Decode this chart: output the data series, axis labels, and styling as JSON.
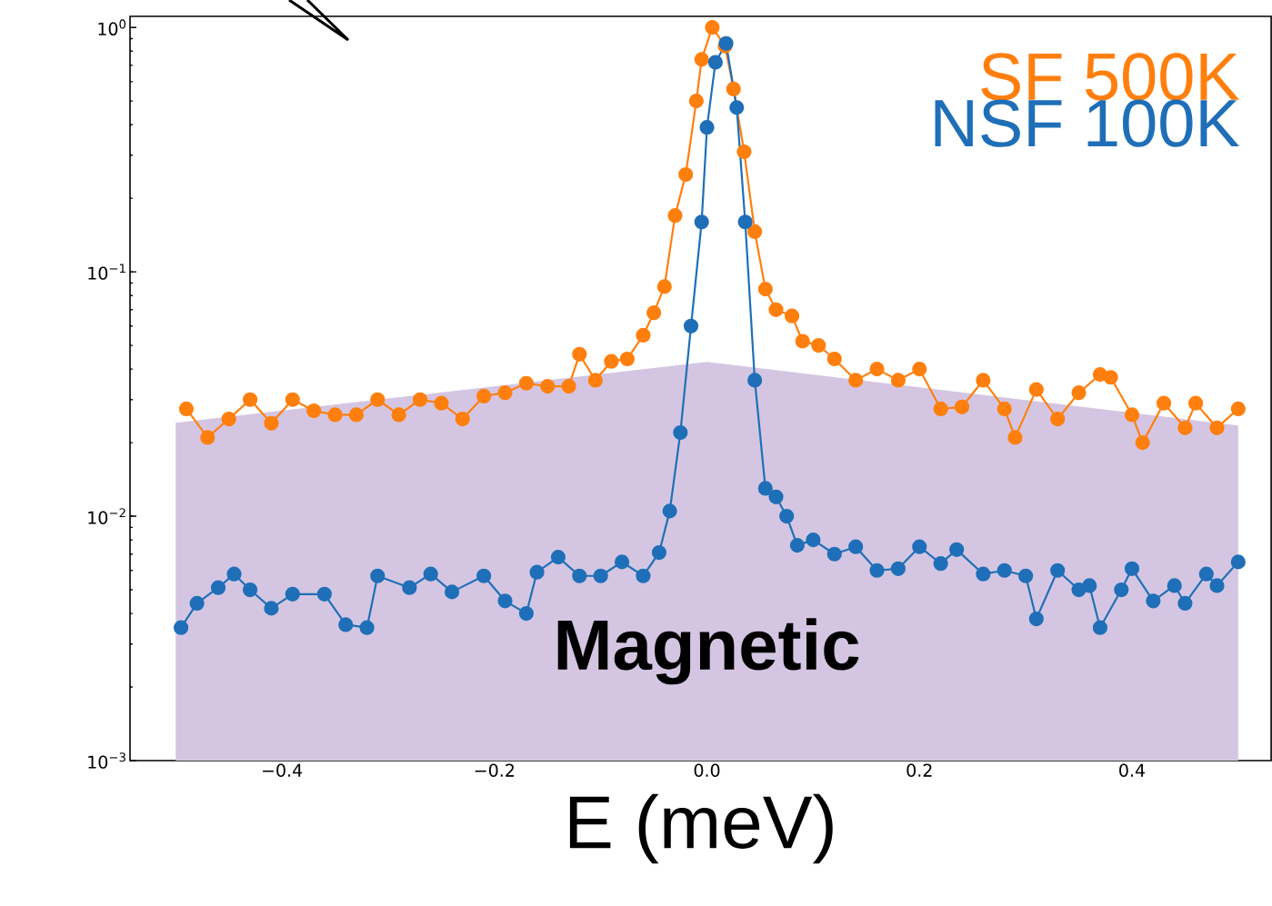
{
  "chart_data": {
    "type": "line",
    "xlabel": "E (meV)",
    "xlim": [
      -0.543,
      0.531
    ],
    "ylim": [
      0.001,
      1.11
    ],
    "log": "y",
    "marker": "circle",
    "line_style": "solid",
    "legend": "top right",
    "grid": false,
    "xticks": [
      {
        "value": -0.4,
        "label": "−0.4"
      },
      {
        "value": -0.2,
        "label": "−0.2"
      },
      {
        "value": 0.0,
        "label": "0.0"
      },
      {
        "value": 0.2,
        "label": "0.2"
      },
      {
        "value": 0.4,
        "label": "0.4"
      }
    ],
    "yticks": [
      {
        "value": 0.001,
        "label": "10$^{−3}$"
      },
      {
        "value": 0.01,
        "label": "10$^{−2}$"
      },
      {
        "value": 0.1,
        "label": "10$^{−1}$"
      },
      {
        "value": 1,
        "label": "10$^{0}$"
      }
    ],
    "series": [
      {
        "name": "Magnetic",
        "type": "area",
        "marker": "none",
        "color": "#d4c6e2",
        "x": [
          -0.5,
          0.0,
          0.5
        ],
        "values": [
          0.0241,
          0.0428,
          0.0235
        ]
      },
      {
        "name": "SF 500K",
        "color": "#ff7f0e",
        "x": [
          -0.49,
          -0.47,
          -0.45,
          -0.43,
          -0.41,
          -0.39,
          -0.37,
          -0.35,
          -0.33,
          -0.31,
          -0.29,
          -0.27,
          -0.25,
          -0.23,
          -0.21,
          -0.19,
          -0.17,
          -0.15,
          -0.13,
          -0.12,
          -0.105,
          -0.09,
          -0.075,
          -0.06,
          -0.05,
          -0.04,
          -0.03,
          -0.02,
          -0.01,
          -0.005,
          0.005,
          0.017,
          0.025,
          0.035,
          0.045,
          0.055,
          0.065,
          0.08,
          0.09,
          0.105,
          0.12,
          0.14,
          0.16,
          0.18,
          0.2,
          0.22,
          0.24,
          0.26,
          0.28,
          0.29,
          0.31,
          0.33,
          0.35,
          0.37,
          0.38,
          0.4,
          0.41,
          0.43,
          0.45,
          0.46,
          0.48,
          0.5
        ],
        "values": [
          0.0275,
          0.021,
          0.025,
          0.03,
          0.024,
          0.03,
          0.027,
          0.026,
          0.026,
          0.03,
          0.026,
          0.03,
          0.029,
          0.025,
          0.031,
          0.032,
          0.035,
          0.034,
          0.034,
          0.046,
          0.036,
          0.043,
          0.044,
          0.055,
          0.068,
          0.087,
          0.17,
          0.25,
          0.5,
          0.74,
          1.0,
          0.84,
          0.56,
          0.31,
          0.146,
          0.085,
          0.07,
          0.066,
          0.052,
          0.05,
          0.044,
          0.036,
          0.04,
          0.036,
          0.04,
          0.0275,
          0.028,
          0.036,
          0.0275,
          0.021,
          0.033,
          0.025,
          0.032,
          0.038,
          0.037,
          0.026,
          0.02,
          0.029,
          0.023,
          0.029,
          0.023,
          0.0275
        ]
      },
      {
        "name": "NSF 100K",
        "color": "#1f6fb8",
        "x": [
          -0.495,
          -0.48,
          -0.46,
          -0.445,
          -0.43,
          -0.41,
          -0.39,
          -0.36,
          -0.34,
          -0.32,
          -0.31,
          -0.28,
          -0.26,
          -0.24,
          -0.21,
          -0.19,
          -0.17,
          -0.16,
          -0.14,
          -0.12,
          -0.1,
          -0.08,
          -0.06,
          -0.045,
          -0.035,
          -0.025,
          -0.015,
          -0.005,
          0.0,
          0.008,
          0.018,
          0.028,
          0.036,
          0.045,
          0.055,
          0.065,
          0.075,
          0.085,
          0.1,
          0.12,
          0.14,
          0.16,
          0.18,
          0.2,
          0.22,
          0.235,
          0.26,
          0.28,
          0.3,
          0.31,
          0.33,
          0.35,
          0.36,
          0.37,
          0.39,
          0.4,
          0.42,
          0.44,
          0.45,
          0.47,
          0.48,
          0.5
        ],
        "values": [
          0.0035,
          0.0044,
          0.0051,
          0.0058,
          0.005,
          0.0042,
          0.0048,
          0.0048,
          0.0036,
          0.0035,
          0.0057,
          0.0051,
          0.0058,
          0.0049,
          0.0057,
          0.0045,
          0.004,
          0.0059,
          0.0068,
          0.0057,
          0.0057,
          0.0065,
          0.0057,
          0.0071,
          0.0105,
          0.022,
          0.06,
          0.16,
          0.39,
          0.72,
          0.86,
          0.47,
          0.16,
          0.036,
          0.013,
          0.012,
          0.01,
          0.0076,
          0.008,
          0.007,
          0.0075,
          0.006,
          0.0061,
          0.0075,
          0.0064,
          0.0073,
          0.0058,
          0.006,
          0.0057,
          0.0038,
          0.006,
          0.005,
          0.0052,
          0.0035,
          0.005,
          0.0061,
          0.0045,
          0.0052,
          0.0044,
          0.0058,
          0.0052,
          0.0065
        ]
      }
    ]
  }
}
